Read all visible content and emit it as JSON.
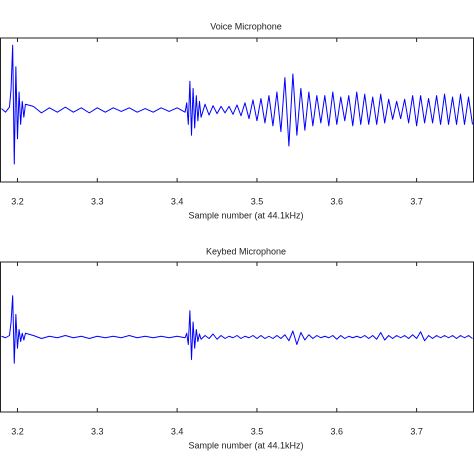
{
  "chart_data": [
    {
      "type": "line",
      "title": "Voice Microphone",
      "xlabel": "Sample number (at 44.1kHz)",
      "color": "#0000ff",
      "xlim": [
        3.17875,
        3.77125
      ],
      "ylim": [
        -1,
        1
      ],
      "xticks": [
        3.2,
        3.3,
        3.4,
        3.5,
        3.6,
        3.7
      ],
      "x": [
        3.18,
        3.185,
        3.19,
        3.192,
        3.194,
        3.196,
        3.198,
        3.2,
        3.202,
        3.204,
        3.206,
        3.208,
        3.21,
        3.22,
        3.23,
        3.24,
        3.25,
        3.26,
        3.27,
        3.28,
        3.29,
        3.3,
        3.31,
        3.32,
        3.33,
        3.34,
        3.35,
        3.36,
        3.37,
        3.38,
        3.39,
        3.4,
        3.41,
        3.412,
        3.414,
        3.416,
        3.418,
        3.42,
        3.422,
        3.424,
        3.426,
        3.428,
        3.43,
        3.435,
        3.44,
        3.445,
        3.45,
        3.455,
        3.46,
        3.465,
        3.47,
        3.475,
        3.48,
        3.485,
        3.49,
        3.495,
        3.5,
        3.505,
        3.51,
        3.515,
        3.52,
        3.525,
        3.53,
        3.535,
        3.54,
        3.545,
        3.55,
        3.555,
        3.56,
        3.565,
        3.57,
        3.575,
        3.58,
        3.585,
        3.59,
        3.595,
        3.6,
        3.605,
        3.61,
        3.615,
        3.62,
        3.625,
        3.63,
        3.635,
        3.64,
        3.645,
        3.65,
        3.655,
        3.66,
        3.665,
        3.67,
        3.675,
        3.68,
        3.685,
        3.69,
        3.695,
        3.7,
        3.705,
        3.71,
        3.715,
        3.72,
        3.725,
        3.73,
        3.735,
        3.74,
        3.745,
        3.75,
        3.755,
        3.76,
        3.765,
        3.77
      ],
      "values": [
        0.02,
        -0.03,
        0.04,
        0.3,
        0.9,
        -0.75,
        0.6,
        -0.4,
        0.25,
        -0.2,
        0.12,
        -0.1,
        0.08,
        0.05,
        -0.04,
        0.03,
        -0.03,
        0.04,
        -0.03,
        0.03,
        -0.04,
        0.03,
        -0.03,
        0.03,
        -0.02,
        0.03,
        -0.03,
        0.02,
        -0.03,
        0.03,
        -0.02,
        0.03,
        -0.03,
        0.1,
        -0.2,
        0.4,
        -0.35,
        0.3,
        -0.25,
        0.2,
        -0.15,
        0.12,
        -0.1,
        0.08,
        -0.07,
        0.06,
        -0.05,
        0.05,
        -0.04,
        0.05,
        -0.06,
        0.07,
        -0.08,
        0.1,
        -0.12,
        0.14,
        -0.15,
        0.16,
        -0.18,
        0.2,
        -0.22,
        0.25,
        -0.3,
        0.45,
        -0.5,
        0.5,
        -0.35,
        0.3,
        -0.28,
        0.25,
        -0.22,
        0.2,
        -0.18,
        0.2,
        -0.22,
        0.25,
        -0.2,
        0.18,
        -0.15,
        0.2,
        -0.22,
        0.25,
        -0.2,
        0.22,
        -0.2,
        0.18,
        -0.2,
        0.22,
        -0.18,
        0.15,
        -0.13,
        0.12,
        -0.12,
        0.15,
        -0.18,
        0.2,
        -0.22,
        0.2,
        -0.18,
        0.16,
        -0.18,
        0.2,
        -0.2,
        0.22,
        -0.2,
        0.18,
        -0.2,
        0.22,
        -0.2,
        0.18,
        -0.2
      ]
    },
    {
      "type": "line",
      "title": "Keybed Microphone",
      "xlabel": "Sample number (at 44.1kHz)",
      "color": "#0000ff",
      "xlim": [
        3.17875,
        3.77125
      ],
      "ylim": [
        -1,
        1
      ],
      "xticks": [
        3.2,
        3.3,
        3.4,
        3.5,
        3.6,
        3.7
      ],
      "x": [
        3.18,
        3.185,
        3.19,
        3.192,
        3.194,
        3.196,
        3.198,
        3.2,
        3.202,
        3.204,
        3.206,
        3.208,
        3.21,
        3.22,
        3.23,
        3.24,
        3.25,
        3.26,
        3.27,
        3.28,
        3.29,
        3.3,
        3.31,
        3.32,
        3.33,
        3.34,
        3.35,
        3.36,
        3.37,
        3.38,
        3.39,
        3.4,
        3.41,
        3.412,
        3.414,
        3.416,
        3.418,
        3.42,
        3.422,
        3.424,
        3.426,
        3.428,
        3.43,
        3.435,
        3.44,
        3.445,
        3.45,
        3.455,
        3.46,
        3.465,
        3.47,
        3.475,
        3.48,
        3.485,
        3.49,
        3.495,
        3.5,
        3.505,
        3.51,
        3.515,
        3.52,
        3.525,
        3.53,
        3.535,
        3.54,
        3.545,
        3.55,
        3.555,
        3.56,
        3.565,
        3.57,
        3.575,
        3.58,
        3.585,
        3.59,
        3.595,
        3.6,
        3.605,
        3.61,
        3.615,
        3.62,
        3.625,
        3.63,
        3.635,
        3.64,
        3.645,
        3.65,
        3.655,
        3.66,
        3.665,
        3.67,
        3.675,
        3.68,
        3.685,
        3.69,
        3.695,
        3.7,
        3.705,
        3.71,
        3.715,
        3.72,
        3.725,
        3.73,
        3.735,
        3.74,
        3.745,
        3.75,
        3.755,
        3.76,
        3.765,
        3.77
      ],
      "values": [
        0.01,
        -0.01,
        0.02,
        0.2,
        0.55,
        -0.35,
        0.3,
        -0.15,
        0.1,
        -0.06,
        0.05,
        -0.04,
        0.05,
        0.02,
        -0.02,
        0.01,
        -0.01,
        0.02,
        -0.01,
        0.01,
        -0.02,
        0.01,
        -0.01,
        0.01,
        -0.01,
        0.02,
        -0.01,
        0.01,
        -0.01,
        0.01,
        -0.01,
        0.01,
        -0.01,
        0.05,
        -0.1,
        0.35,
        -0.3,
        0.2,
        -0.15,
        0.1,
        -0.06,
        0.04,
        -0.03,
        0.02,
        -0.02,
        0.04,
        -0.03,
        0.02,
        -0.02,
        0.01,
        -0.01,
        0.02,
        -0.02,
        0.01,
        -0.01,
        0.02,
        -0.02,
        0.02,
        -0.02,
        0.01,
        -0.02,
        0.02,
        -0.02,
        0.03,
        -0.05,
        0.08,
        -0.1,
        0.06,
        -0.04,
        0.03,
        -0.02,
        0.02,
        -0.01,
        0.01,
        -0.01,
        0.02,
        -0.03,
        0.02,
        -0.02,
        0.01,
        -0.01,
        0.01,
        -0.01,
        0.02,
        -0.02,
        0.02,
        -0.03,
        0.06,
        -0.04,
        0.02,
        -0.02,
        0.02,
        -0.01,
        0.02,
        -0.02,
        0.03,
        -0.02,
        0.07,
        -0.05,
        0.02,
        -0.02,
        0.02,
        -0.01,
        0.02,
        -0.01,
        0.02,
        -0.02,
        0.02,
        -0.01,
        0.02,
        -0.02
      ]
    }
  ]
}
